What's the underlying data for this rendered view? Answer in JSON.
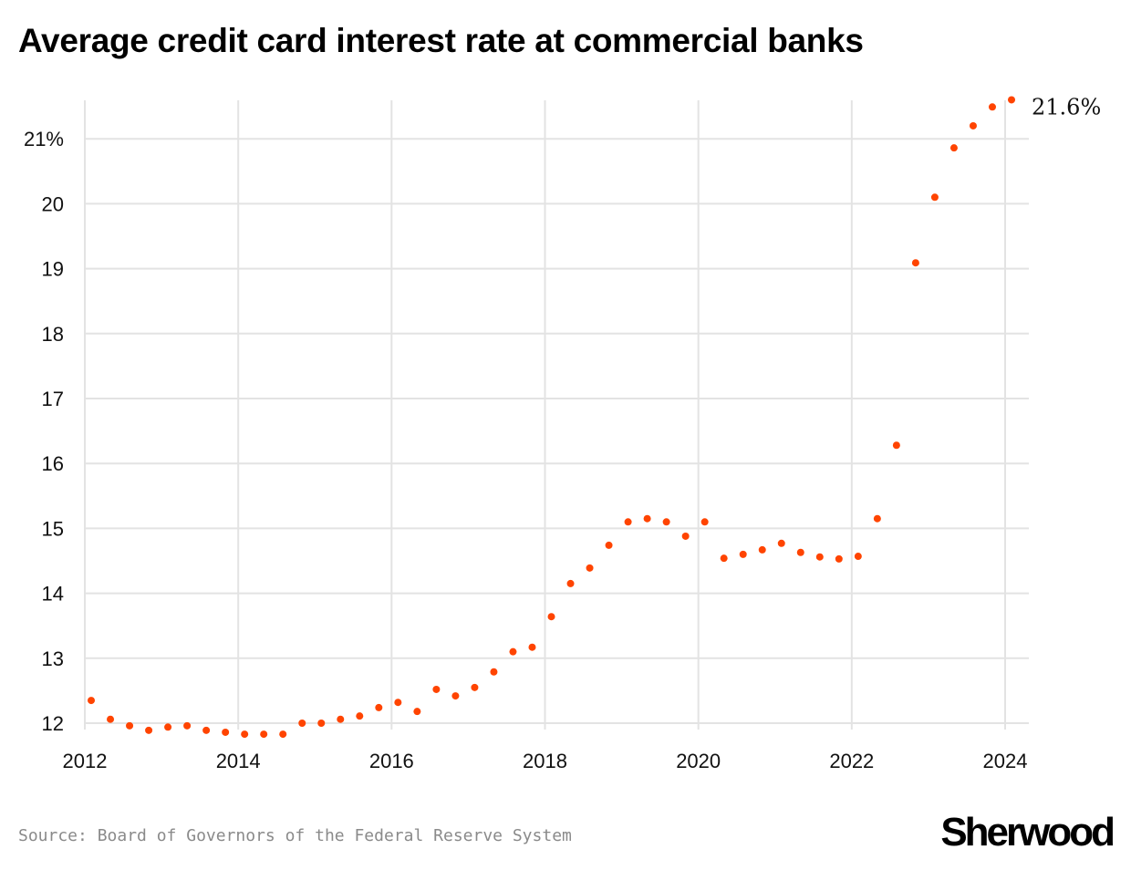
{
  "title": "Average credit card interest rate at commercial banks",
  "source": "Source: Board of Governors of the Federal Reserve System",
  "logo": "Sherwood",
  "chart_data": {
    "type": "scatter",
    "title": "Average credit card interest rate at commercial banks",
    "xlabel": "",
    "ylabel": "",
    "xlim": [
      2012,
      2024
    ],
    "ylim": [
      12,
      21.6
    ],
    "grid": true,
    "point_color": "#ff4400",
    "x_ticks": [
      "2012",
      "2014",
      "2016",
      "2018",
      "2020",
      "2022",
      "2024"
    ],
    "y_ticks": [
      {
        "value": 12,
        "label": "12"
      },
      {
        "value": 13,
        "label": "13"
      },
      {
        "value": 14,
        "label": "14"
      },
      {
        "value": 15,
        "label": "15"
      },
      {
        "value": 16,
        "label": "16"
      },
      {
        "value": 17,
        "label": "17"
      },
      {
        "value": 18,
        "label": "18"
      },
      {
        "value": 19,
        "label": "19"
      },
      {
        "value": 20,
        "label": "20"
      },
      {
        "value": 21,
        "label": "21%"
      }
    ],
    "end_label": "21.6%",
    "x": [
      "2012-02",
      "2012-05",
      "2012-08",
      "2012-11",
      "2013-02",
      "2013-05",
      "2013-08",
      "2013-11",
      "2014-02",
      "2014-05",
      "2014-08",
      "2014-11",
      "2015-02",
      "2015-05",
      "2015-08",
      "2015-11",
      "2016-02",
      "2016-05",
      "2016-08",
      "2016-11",
      "2017-02",
      "2017-05",
      "2017-08",
      "2017-11",
      "2018-02",
      "2018-05",
      "2018-08",
      "2018-11",
      "2019-02",
      "2019-05",
      "2019-08",
      "2019-11",
      "2020-02",
      "2020-05",
      "2020-08",
      "2020-11",
      "2021-02",
      "2021-05",
      "2021-08",
      "2021-11",
      "2022-02",
      "2022-05",
      "2022-08",
      "2022-11",
      "2023-02",
      "2023-05",
      "2023-08",
      "2023-11",
      "2024-02"
    ],
    "values": [
      12.35,
      12.06,
      11.96,
      11.89,
      11.94,
      11.96,
      11.89,
      11.86,
      11.83,
      11.83,
      11.83,
      12.0,
      12.0,
      12.06,
      12.11,
      12.24,
      12.32,
      12.18,
      12.52,
      12.42,
      12.55,
      12.79,
      13.1,
      13.17,
      13.64,
      14.15,
      14.39,
      14.74,
      15.1,
      15.15,
      15.1,
      14.88,
      15.1,
      14.54,
      14.6,
      14.67,
      14.77,
      14.63,
      14.56,
      14.53,
      14.57,
      15.15,
      16.28,
      19.09,
      20.1,
      20.86,
      21.2,
      21.49,
      21.6
    ]
  }
}
